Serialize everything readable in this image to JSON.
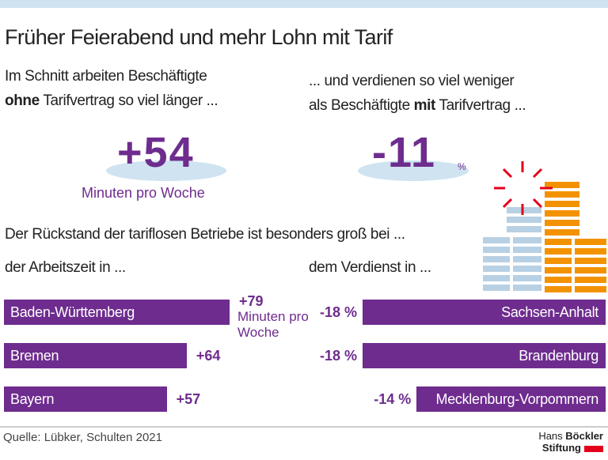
{
  "header": {
    "title": "Früher Feierabend und mehr Lohn mit Tarif"
  },
  "left": {
    "intro_line1": "Im Schnitt arbeiten Beschäftigte",
    "intro_bold": "ohne",
    "intro_rest": "Tarifvertrag so viel länger ...",
    "figure": "+54",
    "figure_unit": "Minuten pro Woche"
  },
  "right": {
    "intro_line1": "... und verdienen so viel weniger",
    "intro_prefix": "als Beschäftigte",
    "intro_bold": "mit",
    "intro_rest": "Tarifvertrag ...",
    "figure": "-11",
    "figure_unit": "%"
  },
  "section_heading": "Der Rückstand der tariflosen Betriebe ist besonders groß bei ...",
  "chart_data": [
    {
      "type": "bar",
      "orientation": "horizontal",
      "subtitle": "der Arbeitszeit in ...",
      "categories": [
        "Baden-Württemberg",
        "Bremen",
        "Bayern"
      ],
      "values": [
        79,
        64,
        57
      ],
      "value_labels": [
        "+79",
        "+64",
        "+57"
      ],
      "unit_label": "Minuten pro Woche",
      "color": "#6e2c8e"
    },
    {
      "type": "bar",
      "orientation": "horizontal",
      "subtitle": "dem Verdienst in ...",
      "categories": [
        "Sachsen-Anhalt",
        "Brandenburg",
        "Mecklenburg-Vorpommern"
      ],
      "values": [
        -18,
        -18,
        -14
      ],
      "value_labels": [
        "-18 %",
        "-18 %",
        "-14 %"
      ],
      "color": "#6e2c8e"
    }
  ],
  "footer": {
    "source": "Quelle: Lübker, Schulten 2021",
    "logo_name": "Hans",
    "logo_bold": "Böckler",
    "logo_line2": "Stiftung"
  }
}
